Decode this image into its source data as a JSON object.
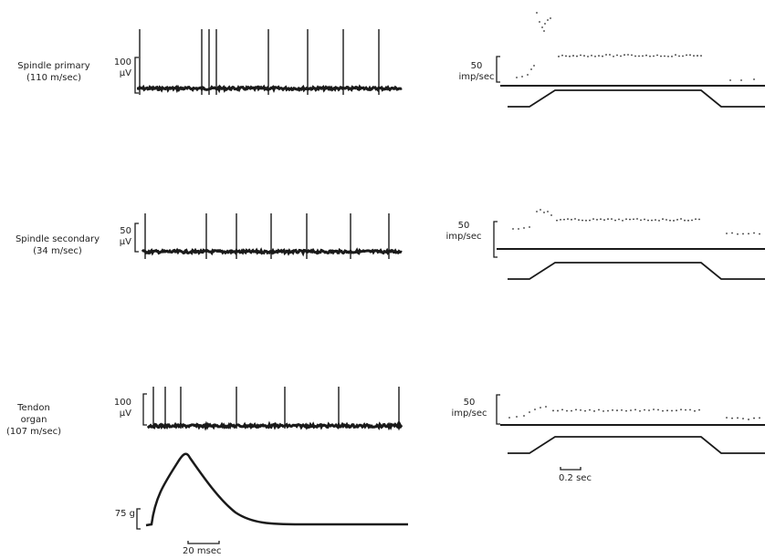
{
  "units": [
    {
      "name": "Spindle primary",
      "velocity": "(110 m/sec)",
      "spike_scale": {
        "value": "100",
        "unit": "µV"
      },
      "rate_scale": {
        "value": "50",
        "unit": "imp/sec"
      }
    },
    {
      "name": "Spindle secondary",
      "velocity": "(34 m/sec)",
      "spike_scale": {
        "value": "50",
        "unit": "µV"
      },
      "rate_scale": {
        "value": "50",
        "unit": "imp/sec"
      }
    },
    {
      "name": "Tendon organ",
      "velocity": "(107 m/sec)",
      "spike_scale": {
        "value": "100",
        "unit": "µV"
      },
      "rate_scale": {
        "value": "50",
        "unit": "imp/sec"
      }
    }
  ],
  "force_scale": "75 g",
  "time_bar_left": "20 msec",
  "time_bar_right": "0.2 sec"
}
